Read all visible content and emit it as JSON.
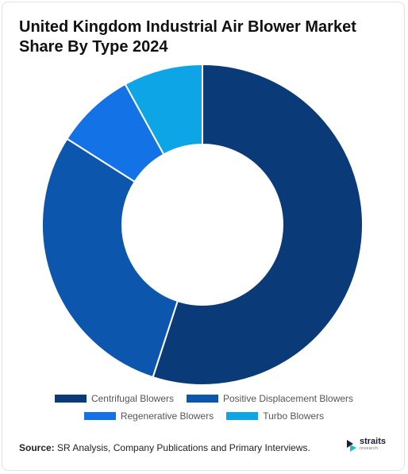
{
  "title": "United Kingdom Industrial Air Blower Market Share By Type 2024",
  "chart_data": {
    "type": "pie",
    "variant": "donut",
    "title": "United Kingdom Industrial Air Blower Market Share By Type 2024",
    "categories": [
      "Centrifugal Blowers",
      "Positive Displacement Blowers",
      "Regenerative Blowers",
      "Turbo Blowers"
    ],
    "values": [
      55,
      29,
      8,
      8
    ],
    "unit": "%",
    "colors": [
      "#0a3a78",
      "#0c56ae",
      "#1372e6",
      "#0ea5e6"
    ],
    "legend_position": "bottom"
  },
  "legend": {
    "rows": [
      [
        {
          "label": "Centrifugal Blowers",
          "color": "#0a3a78"
        },
        {
          "label": "Positive Displacement Blowers",
          "color": "#0c56ae"
        }
      ],
      [
        {
          "label": "Regenerative Blowers",
          "color": "#1372e6"
        },
        {
          "label": "Turbo Blowers",
          "color": "#0ea5e6"
        }
      ]
    ]
  },
  "footer": {
    "source_label": "Source:",
    "source_text": "SR Analysis, Company Publications and Primary Interviews."
  },
  "brand": {
    "name": "straits",
    "sub": "research",
    "logo_icon": "straits-logo-icon"
  }
}
